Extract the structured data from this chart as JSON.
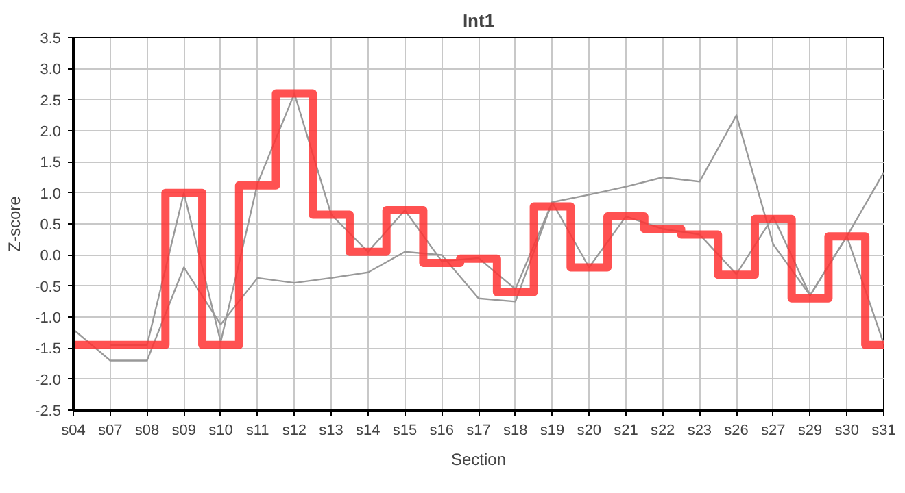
{
  "chart_data": {
    "type": "line",
    "title": "Int1",
    "xlabel": "Section",
    "ylabel": "Z-score",
    "categories": [
      "s04",
      "s07",
      "s08",
      "s09",
      "s10",
      "s11",
      "s12",
      "s13",
      "s14",
      "s15",
      "s16",
      "s17",
      "s18",
      "s19",
      "s20",
      "s21",
      "s22",
      "s23",
      "s26",
      "s27",
      "s29",
      "s30",
      "s31"
    ],
    "series": [
      {
        "color": "#999999",
        "values": [
          null,
          -1.45,
          -1.45,
          1.0,
          -1.4,
          1.15,
          2.6,
          0.65,
          0.05,
          0.72,
          -0.1,
          -0.05,
          -0.55,
          0.85,
          -0.2,
          0.62,
          0.42,
          0.33,
          -0.31,
          0.62,
          -0.65,
          0.3,
          -1.43
        ]
      },
      {
        "color": "#999999",
        "values": [
          -1.2,
          -1.7,
          -1.7,
          -0.2,
          -1.12,
          -0.37,
          -0.45,
          -0.37,
          -0.28,
          0.05,
          0.0,
          -0.7,
          -0.75,
          0.85,
          0.97,
          1.1,
          1.25,
          1.18,
          2.25,
          0.17,
          -0.65,
          0.3,
          1.33
        ]
      },
      {
        "type": "step",
        "color": "#ff3333",
        "values": [
          -1.45,
          -1.45,
          -1.45,
          1.0,
          -1.45,
          1.12,
          2.6,
          0.65,
          0.05,
          0.72,
          -0.13,
          -0.06,
          -0.6,
          0.78,
          -0.2,
          0.62,
          0.42,
          0.33,
          -0.32,
          0.58,
          -0.7,
          0.3,
          -1.45
        ]
      }
    ],
    "ylim": [
      -2.5,
      3.5
    ],
    "yticks": [
      {
        "value": -2.5,
        "label": "-2.5"
      },
      {
        "value": -2,
        "label": "-2.0"
      },
      {
        "value": -1.5,
        "label": "-1.5"
      },
      {
        "value": -1,
        "label": "-1.0"
      },
      {
        "value": -0.5,
        "label": "-0.5"
      },
      {
        "value": 0,
        "label": "0.0"
      },
      {
        "value": 0.5,
        "label": "0.5"
      },
      {
        "value": 1,
        "label": "1.0"
      },
      {
        "value": 1.5,
        "label": "1.5"
      },
      {
        "value": 2,
        "label": "2.0"
      },
      {
        "value": 2.5,
        "label": "2.5"
      },
      {
        "value": 3,
        "label": "3.0"
      },
      {
        "value": 3.5,
        "label": "3.5"
      }
    ],
    "grid": true
  }
}
